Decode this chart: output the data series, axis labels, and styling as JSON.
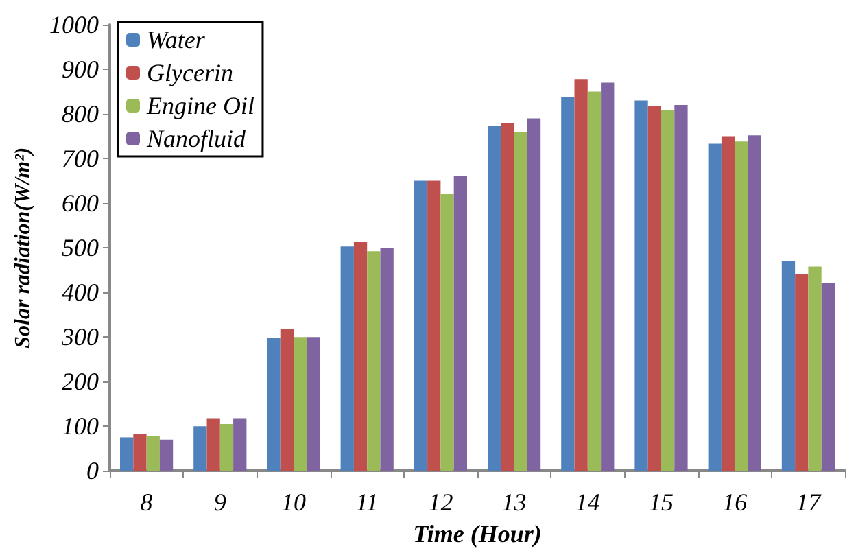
{
  "chart_data": {
    "type": "bar",
    "xlabel": "Time (Hour)",
    "ylabel": "Solar radiation(W/m²)",
    "categories": [
      "8",
      "9",
      "10",
      "11",
      "12",
      "13",
      "14",
      "15",
      "16",
      "17"
    ],
    "series": [
      {
        "name": "Water",
        "color": "#4f81bd",
        "values": [
          75,
          100,
          297,
          503,
          650,
          773,
          838,
          830,
          733,
          470
        ]
      },
      {
        "name": "Glycerin",
        "color": "#c0504d",
        "values": [
          83,
          118,
          318,
          513,
          650,
          780,
          878,
          818,
          750,
          440
        ]
      },
      {
        "name": "Engine Oil",
        "color": "#9bbb59",
        "values": [
          78,
          105,
          300,
          492,
          620,
          760,
          850,
          808,
          738,
          458
        ]
      },
      {
        "name": "Nanofluid",
        "color": "#8064a2",
        "values": [
          70,
          118,
          300,
          500,
          660,
          790,
          870,
          820,
          752,
          420
        ]
      }
    ],
    "ylim": [
      0,
      1000
    ],
    "yticks": [
      0,
      100,
      200,
      300,
      400,
      500,
      600,
      700,
      800,
      900,
      1000
    ],
    "grid": false,
    "legend": "top left"
  }
}
